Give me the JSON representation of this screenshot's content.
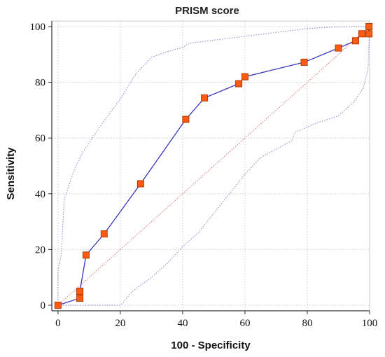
{
  "chart_data": {
    "type": "line",
    "title": "PRISM score",
    "xlabel": "100 - Specificity",
    "ylabel": "Sensitivity",
    "xlim": [
      -2,
      100
    ],
    "ylim": [
      -2,
      102
    ],
    "x_ticks": [
      "0",
      "20",
      "40",
      "60",
      "80",
      "100"
    ],
    "y_ticks": [
      "0",
      "20",
      "40",
      "60",
      "80",
      "100"
    ],
    "grid": true,
    "series": [
      {
        "role": "roc-curve",
        "style": "solid",
        "color": "#3535b8",
        "marker_color": "#ff5a14",
        "marker_edge": "#b23a00",
        "x": [
          0,
          7,
          7,
          7,
          9,
          14.8,
          26.5,
          41,
          47,
          58,
          60,
          79,
          90,
          95.5,
          97.5,
          99.8,
          99.8
        ],
        "y": [
          0,
          2.5,
          5,
          5,
          18,
          25.6,
          43.6,
          66.7,
          74.4,
          79.5,
          82,
          87.2,
          92.3,
          94.9,
          97.4,
          97.4,
          100
        ]
      },
      {
        "role": "confidence-upper",
        "style": "dotted",
        "color": "#8c8cd0",
        "x": [
          0,
          0,
          1,
          2,
          5,
          8,
          14,
          20,
          25,
          30,
          35,
          40,
          42,
          60,
          80,
          88,
          95,
          100
        ],
        "y": [
          0,
          12,
          18,
          38,
          48,
          55,
          65,
          74,
          83,
          89,
          91,
          92.5,
          94,
          96.5,
          99.3,
          99.8,
          100,
          100
        ]
      },
      {
        "role": "confidence-lower",
        "style": "dotted",
        "color": "#8c8cd0",
        "x": [
          0,
          20,
          21,
          23,
          25,
          30,
          35,
          40,
          45,
          50,
          55,
          60,
          65,
          70,
          75,
          76,
          78,
          82,
          90,
          95,
          98,
          99.5,
          100
        ],
        "y": [
          0,
          0,
          1,
          4,
          6,
          10,
          15,
          21,
          26,
          33,
          40,
          47,
          53,
          56,
          59,
          62,
          63,
          65,
          68,
          73,
          78,
          85,
          100
        ]
      },
      {
        "role": "diagonal-reference",
        "style": "dotted",
        "color": "#e07a7a",
        "x": [
          0,
          100
        ],
        "y": [
          0,
          100
        ]
      }
    ]
  }
}
